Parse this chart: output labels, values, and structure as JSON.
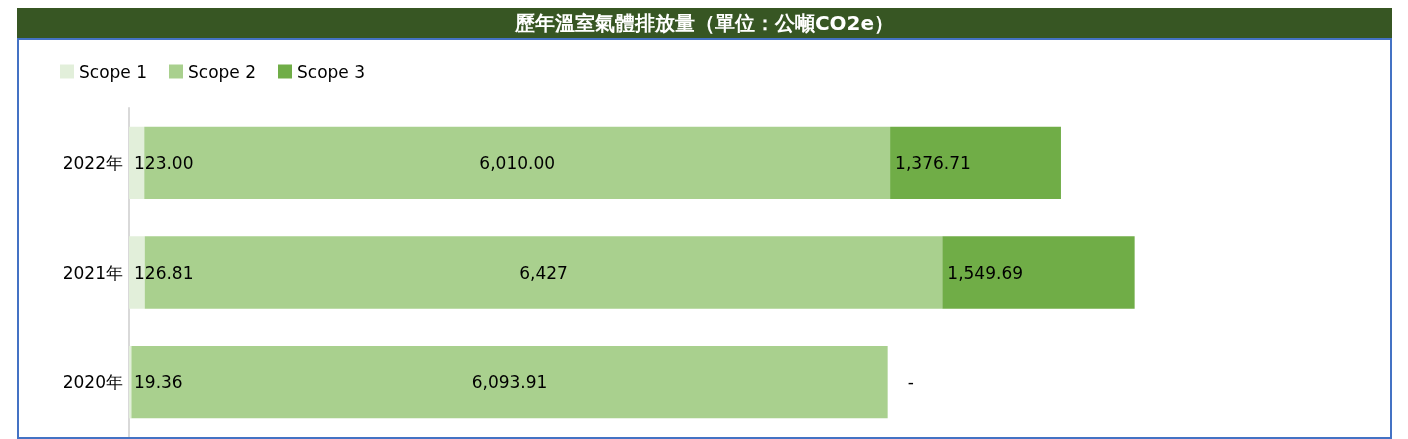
{
  "chart_data": {
    "type": "bar",
    "title": "歷年溫室氣體排放量（單位：公噸CO2e）",
    "orientation": "horizontal",
    "stacked": true,
    "categories": [
      "2022年",
      "2021年",
      "2020年"
    ],
    "tick_labels": "y",
    "grid": false,
    "legend": "top left",
    "series": [
      {
        "name": "Scope 1",
        "color": "#e2efda",
        "values": [
          123.0,
          126.81,
          19.36
        ],
        "value_labels": [
          "123.00",
          "126.81",
          "19.36"
        ]
      },
      {
        "name": "Scope 2",
        "color": "#a9d08e",
        "values": [
          6010.0,
          6427,
          6093.91
        ],
        "value_labels": [
          "6,010.00",
          "6,427",
          "6,093.91"
        ]
      },
      {
        "name": "Scope 3",
        "color": "#70ad47",
        "values": [
          1376.71,
          1549.69,
          null
        ],
        "value_labels": [
          "1,376.71",
          "1,549.69",
          "-"
        ]
      }
    ]
  }
}
